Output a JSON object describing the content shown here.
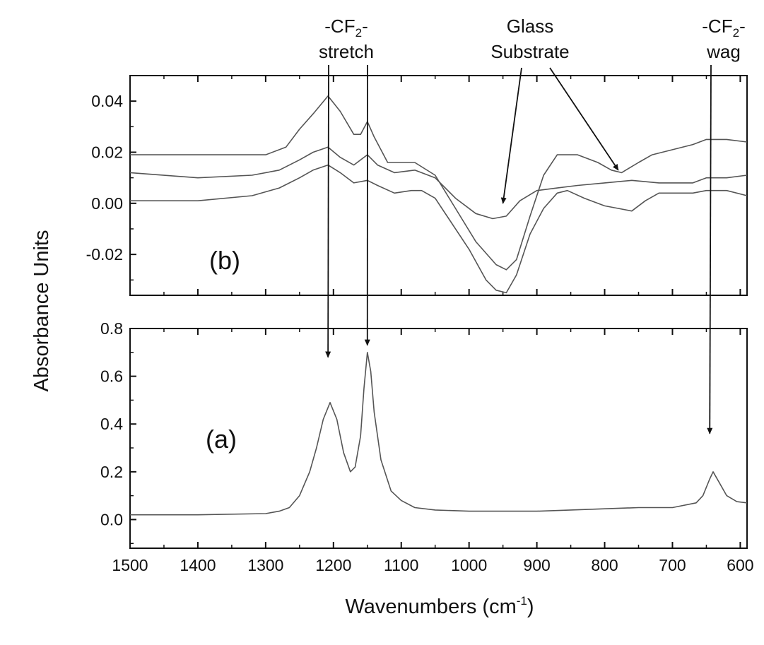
{
  "chart_data": {
    "type": "line",
    "xlabel": "Wavenumbers (cm",
    "xlabel_superscript": "-1",
    "xlabel_suffix": ")",
    "ylabel": "Absorbance Units",
    "x_reversed": true,
    "xlim": [
      1500,
      590
    ],
    "xticks": [
      1500,
      1400,
      1300,
      1200,
      1100,
      1000,
      900,
      800,
      700,
      600
    ],
    "xtick_labels": [
      "1500",
      "1400",
      "1300",
      "1200",
      "1100",
      "1000",
      "900",
      "800",
      "700",
      "600"
    ],
    "grid": false,
    "panels": [
      {
        "id": "b",
        "label": "(b)",
        "ylim": [
          -0.036,
          0.05
        ],
        "yticks": [
          -0.02,
          0.0,
          0.02,
          0.04
        ],
        "ytick_labels": [
          "-0.02",
          "0.00",
          "0.02",
          "0.04"
        ],
        "series": [
          {
            "points": [
              [
                1500,
                0.019
              ],
              [
                1400,
                0.019
              ],
              [
                1300,
                0.019
              ],
              [
                1270,
                0.022
              ],
              [
                1250,
                0.029
              ],
              [
                1230,
                0.035
              ],
              [
                1208,
                0.042
              ],
              [
                1190,
                0.036
              ],
              [
                1170,
                0.027
              ],
              [
                1160,
                0.027
              ],
              [
                1150,
                0.032
              ],
              [
                1140,
                0.026
              ],
              [
                1120,
                0.016
              ],
              [
                1080,
                0.016
              ],
              [
                1050,
                0.011
              ],
              [
                1020,
                -0.002
              ],
              [
                990,
                -0.015
              ],
              [
                960,
                -0.024
              ],
              [
                945,
                -0.026
              ],
              [
                930,
                -0.022
              ],
              [
                910,
                -0.005
              ],
              [
                890,
                0.011
              ],
              [
                870,
                0.019
              ],
              [
                840,
                0.019
              ],
              [
                810,
                0.016
              ],
              [
                790,
                0.013
              ],
              [
                775,
                0.012
              ],
              [
                750,
                0.016
              ],
              [
                730,
                0.019
              ],
              [
                700,
                0.021
              ],
              [
                670,
                0.023
              ],
              [
                650,
                0.025
              ],
              [
                620,
                0.025
              ],
              [
                590,
                0.024
              ]
            ]
          },
          {
            "points": [
              [
                1500,
                0.012
              ],
              [
                1400,
                0.01
              ],
              [
                1320,
                0.011
              ],
              [
                1280,
                0.013
              ],
              [
                1250,
                0.017
              ],
              [
                1230,
                0.02
              ],
              [
                1208,
                0.022
              ],
              [
                1190,
                0.018
              ],
              [
                1170,
                0.015
              ],
              [
                1150,
                0.019
              ],
              [
                1135,
                0.015
              ],
              [
                1110,
                0.012
              ],
              [
                1080,
                0.013
              ],
              [
                1050,
                0.01
              ],
              [
                1020,
                0.002
              ],
              [
                990,
                -0.004
              ],
              [
                965,
                -0.006
              ],
              [
                945,
                -0.005
              ],
              [
                925,
                0.001
              ],
              [
                900,
                0.005
              ],
              [
                870,
                0.006
              ],
              [
                840,
                0.007
              ],
              [
                800,
                0.008
              ],
              [
                760,
                0.009
              ],
              [
                720,
                0.008
              ],
              [
                700,
                0.008
              ],
              [
                670,
                0.008
              ],
              [
                650,
                0.01
              ],
              [
                620,
                0.01
              ],
              [
                590,
                0.011
              ]
            ]
          },
          {
            "points": [
              [
                1500,
                0.001
              ],
              [
                1400,
                0.001
              ],
              [
                1320,
                0.003
              ],
              [
                1280,
                0.006
              ],
              [
                1250,
                0.01
              ],
              [
                1230,
                0.013
              ],
              [
                1208,
                0.015
              ],
              [
                1190,
                0.012
              ],
              [
                1170,
                0.008
              ],
              [
                1150,
                0.009
              ],
              [
                1135,
                0.007
              ],
              [
                1110,
                0.004
              ],
              [
                1085,
                0.005
              ],
              [
                1070,
                0.005
              ],
              [
                1050,
                0.002
              ],
              [
                1030,
                -0.006
              ],
              [
                1000,
                -0.018
              ],
              [
                975,
                -0.03
              ],
              [
                960,
                -0.034
              ],
              [
                945,
                -0.035
              ],
              [
                930,
                -0.028
              ],
              [
                910,
                -0.012
              ],
              [
                890,
                -0.002
              ],
              [
                870,
                0.004
              ],
              [
                855,
                0.005
              ],
              [
                830,
                0.002
              ],
              [
                800,
                -0.001
              ],
              [
                780,
                -0.002
              ],
              [
                760,
                -0.003
              ],
              [
                740,
                0.001
              ],
              [
                720,
                0.004
              ],
              [
                700,
                0.004
              ],
              [
                670,
                0.004
              ],
              [
                650,
                0.005
              ],
              [
                620,
                0.005
              ],
              [
                590,
                0.003
              ]
            ]
          }
        ]
      },
      {
        "id": "a",
        "label": "(a)",
        "ylim": [
          -0.12,
          0.8
        ],
        "yticks": [
          0.0,
          0.2,
          0.4,
          0.6,
          0.8
        ],
        "ytick_labels": [
          "0.0",
          "0.2",
          "0.4",
          "0.6",
          "0.8"
        ],
        "series": [
          {
            "points": [
              [
                1500,
                0.02
              ],
              [
                1400,
                0.02
              ],
              [
                1300,
                0.025
              ],
              [
                1280,
                0.035
              ],
              [
                1265,
                0.05
              ],
              [
                1250,
                0.1
              ],
              [
                1235,
                0.2
              ],
              [
                1225,
                0.3
              ],
              [
                1215,
                0.42
              ],
              [
                1205,
                0.49
              ],
              [
                1195,
                0.42
              ],
              [
                1185,
                0.28
              ],
              [
                1175,
                0.2
              ],
              [
                1168,
                0.22
              ],
              [
                1160,
                0.35
              ],
              [
                1155,
                0.55
              ],
              [
                1150,
                0.7
              ],
              [
                1145,
                0.62
              ],
              [
                1140,
                0.45
              ],
              [
                1130,
                0.25
              ],
              [
                1115,
                0.12
              ],
              [
                1100,
                0.08
              ],
              [
                1080,
                0.05
              ],
              [
                1050,
                0.04
              ],
              [
                1000,
                0.035
              ],
              [
                950,
                0.035
              ],
              [
                900,
                0.035
              ],
              [
                850,
                0.04
              ],
              [
                800,
                0.045
              ],
              [
                750,
                0.05
              ],
              [
                700,
                0.05
              ],
              [
                665,
                0.07
              ],
              [
                655,
                0.1
              ],
              [
                645,
                0.17
              ],
              [
                640,
                0.2
              ],
              [
                632,
                0.16
              ],
              [
                620,
                0.1
              ],
              [
                605,
                0.075
              ],
              [
                590,
                0.07
              ]
            ]
          }
        ]
      }
    ],
    "annotations": [
      {
        "id": "cf2-stretch",
        "line1": "-CF",
        "sub": "2",
        "suffix": "-",
        "line2": "stretch",
        "arrows_to_x": [
          1208,
          1150
        ]
      },
      {
        "id": "glass-substrate",
        "line1": "Glass",
        "line2": "Substrate",
        "arrows_to_x": [
          950,
          780
        ]
      },
      {
        "id": "cf2-wag",
        "line1": "-CF",
        "sub": "2",
        "suffix": "-",
        "line2": "wag",
        "arrows_to_x": [
          645
        ]
      }
    ]
  }
}
